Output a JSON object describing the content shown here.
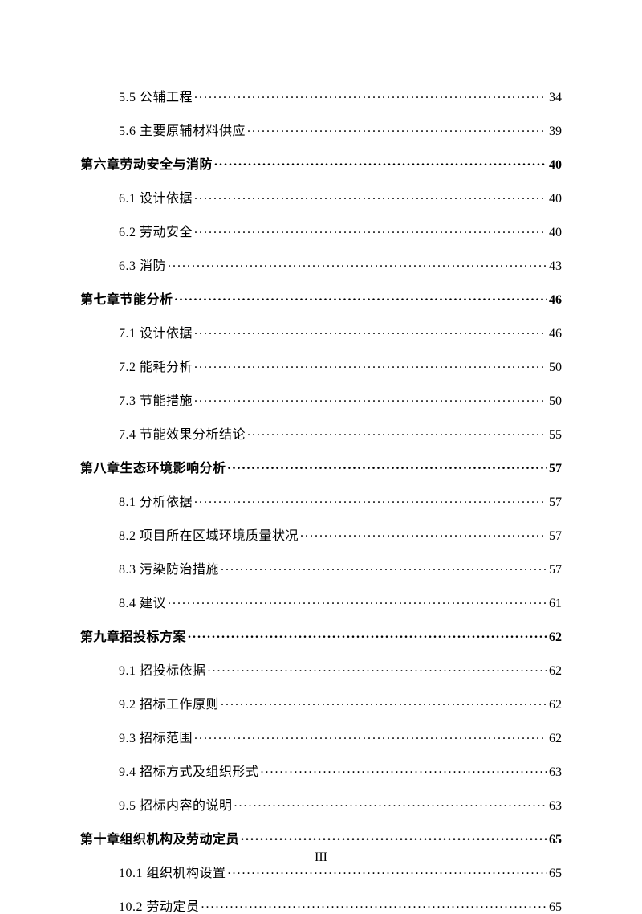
{
  "page_number_label": "III",
  "entries": [
    {
      "level": "section",
      "title": "5.5 公辅工程",
      "page": "34"
    },
    {
      "level": "section",
      "title": "5.6 主要原辅材料供应",
      "page": "39"
    },
    {
      "level": "chapter",
      "title": "第六章劳动安全与消防",
      "page": "40"
    },
    {
      "level": "section",
      "title": "6.1 设计依据",
      "page": "40"
    },
    {
      "level": "section",
      "title": "6.2 劳动安全",
      "page": "40"
    },
    {
      "level": "section",
      "title": "6.3 消防",
      "page": "43"
    },
    {
      "level": "chapter",
      "title": "第七章节能分析",
      "page": "46"
    },
    {
      "level": "section",
      "title": "7.1 设计依据",
      "page": "46"
    },
    {
      "level": "section",
      "title": "7.2 能耗分析",
      "page": "50"
    },
    {
      "level": "section",
      "title": "7.3 节能措施",
      "page": "50"
    },
    {
      "level": "section",
      "title": "7.4 节能效果分析结论",
      "page": "55"
    },
    {
      "level": "chapter",
      "title": "第八章生态环境影响分析",
      "page": "57"
    },
    {
      "level": "section",
      "title": "8.1 分析依据",
      "page": "57"
    },
    {
      "level": "section",
      "title": "8.2 项目所在区域环境质量状况",
      "page": "57"
    },
    {
      "level": "section",
      "title": "8.3 污染防治措施",
      "page": "57"
    },
    {
      "level": "section",
      "title": "8.4 建议",
      "page": "61"
    },
    {
      "level": "chapter",
      "title": "第九章招投标方案",
      "page": "62"
    },
    {
      "level": "section",
      "title": "9.1 招投标依据",
      "page": "62"
    },
    {
      "level": "section",
      "title": "9.2 招标工作原则",
      "page": "62"
    },
    {
      "level": "section",
      "title": "9.3 招标范围",
      "page": "62"
    },
    {
      "level": "section",
      "title": "9.4 招标方式及组织形式",
      "page": "63"
    },
    {
      "level": "section",
      "title": "9.5 招标内容的说明",
      "page": "63"
    },
    {
      "level": "chapter",
      "title": "第十章组织机构及劳动定员",
      "page": "65"
    },
    {
      "level": "section",
      "title": "10.1 组织机构设置",
      "page": "65"
    },
    {
      "level": "section",
      "title": "10.2 劳动定员",
      "page": "65"
    }
  ]
}
